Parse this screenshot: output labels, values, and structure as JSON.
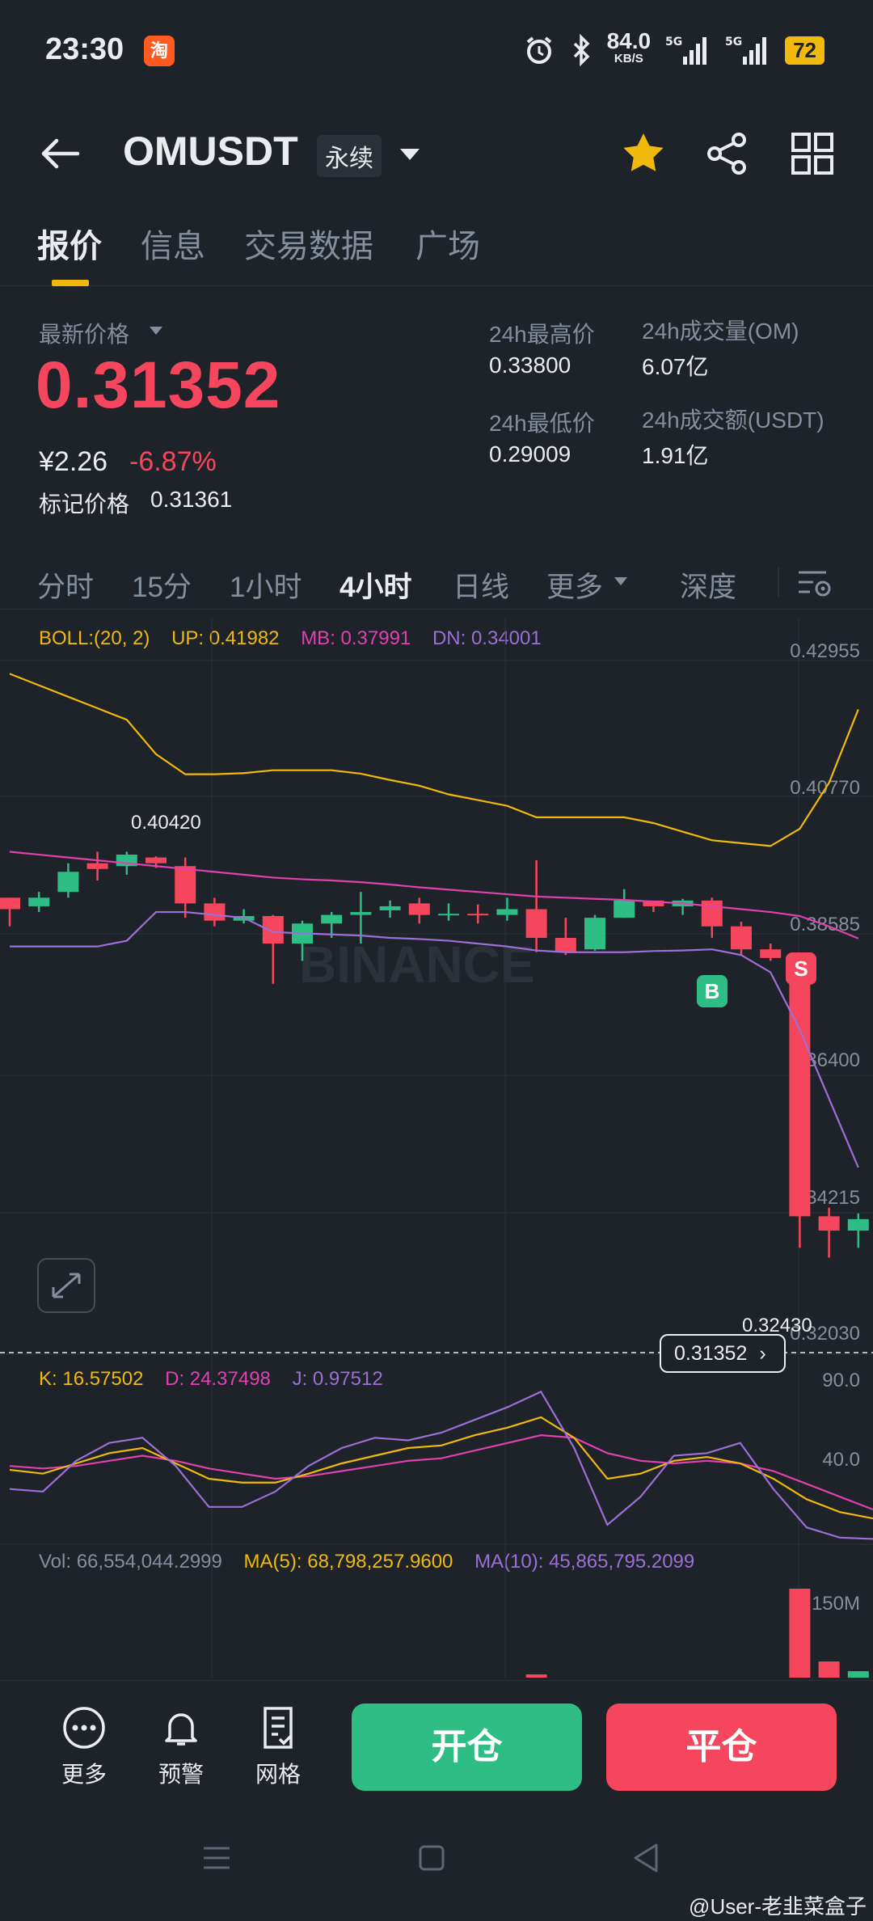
{
  "status_bar": {
    "time": "23:30",
    "app_icon": "淘",
    "net_speed": "84.0",
    "net_unit": "KB/S",
    "battery": "72",
    "icons": [
      "alarm-icon",
      "bluetooth-icon",
      "signal-5g-icon",
      "signal-5g-icon"
    ]
  },
  "header": {
    "symbol": "OMUSDT",
    "contract_type": "永续",
    "icons": [
      "back-arrow-icon",
      "chevron-down-icon",
      "star-icon",
      "share-icon",
      "grid-icon"
    ]
  },
  "tabs": [
    {
      "label": "报价",
      "active": true
    },
    {
      "label": "信息",
      "active": false
    },
    {
      "label": "交易数据",
      "active": false
    },
    {
      "label": "广场",
      "active": false
    }
  ],
  "price": {
    "label": "最新价格",
    "last": "0.31352",
    "cny": "¥2.26",
    "change": "-6.87%",
    "mark_label": "标记价格",
    "mark_value": "0.31361"
  },
  "stats": {
    "high_label": "24h最高价",
    "high": "0.33800",
    "low_label": "24h最低价",
    "low": "0.29009",
    "vol_label": "24h成交量(OM)",
    "vol": "6.07亿",
    "amount_label": "24h成交额(USDT)",
    "amount": "1.91亿"
  },
  "intervals": [
    {
      "label": "分时",
      "active": false
    },
    {
      "label": "15分",
      "active": false
    },
    {
      "label": "1小时",
      "active": false
    },
    {
      "label": "4小时",
      "active": true
    },
    {
      "label": "日线",
      "active": false
    },
    {
      "label": "更多",
      "active": false
    },
    {
      "label": "深度",
      "active": false
    }
  ],
  "boll_legend": {
    "boll": "BOLL:(20, 2)",
    "up": "UP: 0.41982",
    "mb": "MB: 0.37991",
    "dn": "DN: 0.34001"
  },
  "kdj_legend": {
    "k": "K: 16.57502",
    "d": "D: 24.37498",
    "j": "J: 0.97512"
  },
  "vol_legend": {
    "vol": "Vol: 66,554,044.2999",
    "ma5": "MA(5): 68,798,257.9600",
    "ma10": "MA(10): 45,865,795.2099"
  },
  "chart_labels": {
    "high_marker": "0.40420",
    "low_marker": "0.32430",
    "current_price": "0.31352",
    "buy_marker": "B",
    "sell_marker": "S",
    "price_axis": [
      "0.42955",
      "0.40770",
      "0.38585",
      "0.36400",
      "0.34215",
      "0.32030"
    ],
    "kdj_axis": [
      "90.0",
      "40.0"
    ],
    "vol_axis": "150M",
    "watermark": "BINANCE"
  },
  "colors": {
    "up": "#2ebd85",
    "down": "#f6465d",
    "boll_up": "#f0b90b",
    "boll_mb": "#e040b0",
    "boll_dn": "#9b6fd6",
    "accent": "#f0b90b"
  },
  "chart_data": {
    "type": "candlestick",
    "interval": "4小时",
    "ylim": [
      0.31,
      0.43
    ],
    "candles": [
      {
        "o": 0.387,
        "h": 0.387,
        "l": 0.382,
        "c": 0.385
      },
      {
        "o": 0.3855,
        "h": 0.388,
        "l": 0.3845,
        "c": 0.387
      },
      {
        "o": 0.388,
        "h": 0.393,
        "l": 0.387,
        "c": 0.3915
      },
      {
        "o": 0.393,
        "h": 0.395,
        "l": 0.39,
        "c": 0.392
      },
      {
        "o": 0.3925,
        "h": 0.395,
        "l": 0.391,
        "c": 0.3945
      },
      {
        "o": 0.394,
        "h": 0.3942,
        "l": 0.3922,
        "c": 0.393
      },
      {
        "o": 0.3925,
        "h": 0.394,
        "l": 0.3835,
        "c": 0.386
      },
      {
        "o": 0.386,
        "h": 0.387,
        "l": 0.382,
        "c": 0.383
      },
      {
        "o": 0.383,
        "h": 0.385,
        "l": 0.3825,
        "c": 0.3838
      },
      {
        "o": 0.3838,
        "h": 0.384,
        "l": 0.372,
        "c": 0.379
      },
      {
        "o": 0.379,
        "h": 0.383,
        "l": 0.376,
        "c": 0.3825
      },
      {
        "o": 0.3825,
        "h": 0.3845,
        "l": 0.38,
        "c": 0.384
      },
      {
        "o": 0.384,
        "h": 0.388,
        "l": 0.379,
        "c": 0.3845
      },
      {
        "o": 0.3848,
        "h": 0.3865,
        "l": 0.3835,
        "c": 0.3855
      },
      {
        "o": 0.386,
        "h": 0.387,
        "l": 0.3825,
        "c": 0.384
      },
      {
        "o": 0.384,
        "h": 0.386,
        "l": 0.383,
        "c": 0.3842
      },
      {
        "o": 0.3842,
        "h": 0.3858,
        "l": 0.3825,
        "c": 0.384
      },
      {
        "o": 0.384,
        "h": 0.387,
        "l": 0.383,
        "c": 0.385
      },
      {
        "o": 0.385,
        "h": 0.3935,
        "l": 0.3775,
        "c": 0.38
      },
      {
        "o": 0.38,
        "h": 0.3835,
        "l": 0.377,
        "c": 0.3775
      },
      {
        "o": 0.378,
        "h": 0.384,
        "l": 0.3778,
        "c": 0.3835
      },
      {
        "o": 0.3835,
        "h": 0.3885,
        "l": 0.3835,
        "c": 0.3865
      },
      {
        "o": 0.3865,
        "h": 0.3865,
        "l": 0.3845,
        "c": 0.3855
      },
      {
        "o": 0.3855,
        "h": 0.3868,
        "l": 0.384,
        "c": 0.3865
      },
      {
        "o": 0.3865,
        "h": 0.387,
        "l": 0.38,
        "c": 0.382
      },
      {
        "o": 0.382,
        "h": 0.3828,
        "l": 0.377,
        "c": 0.378
      },
      {
        "o": 0.378,
        "h": 0.379,
        "l": 0.376,
        "c": 0.3765
      },
      {
        "o": 0.3765,
        "h": 0.377,
        "l": 0.326,
        "c": 0.3315
      },
      {
        "o": 0.3315,
        "h": 0.333,
        "l": 0.3243,
        "c": 0.329
      },
      {
        "o": 0.329,
        "h": 0.332,
        "l": 0.326,
        "c": 0.331
      }
    ],
    "boll_up": [
      0.426,
      0.424,
      0.422,
      0.42,
      0.418,
      0.412,
      0.4085,
      0.4085,
      0.4087,
      0.4092,
      0.4092,
      0.4092,
      0.4086,
      0.4075,
      0.4065,
      0.405,
      0.404,
      0.403,
      0.401,
      0.401,
      0.401,
      0.401,
      0.4,
      0.3985,
      0.397,
      0.3965,
      0.396,
      0.399,
      0.407,
      0.4198
    ],
    "boll_mb": [
      0.395,
      0.3945,
      0.394,
      0.3935,
      0.393,
      0.3925,
      0.392,
      0.3915,
      0.391,
      0.3905,
      0.3902,
      0.39,
      0.3897,
      0.3893,
      0.3888,
      0.3884,
      0.388,
      0.3876,
      0.3872,
      0.387,
      0.3868,
      0.3866,
      0.3863,
      0.386,
      0.3855,
      0.385,
      0.3845,
      0.3838,
      0.382,
      0.3799
    ],
    "boll_dn": [
      0.3785,
      0.3785,
      0.3785,
      0.3785,
      0.3795,
      0.3845,
      0.3845,
      0.384,
      0.3835,
      0.381,
      0.3808,
      0.3806,
      0.3804,
      0.38,
      0.3798,
      0.3795,
      0.379,
      0.3785,
      0.3778,
      0.3775,
      0.3775,
      0.3775,
      0.3777,
      0.3778,
      0.378,
      0.377,
      0.374,
      0.364,
      0.352,
      0.34
    ],
    "kdj_k": [
      55,
      52,
      60,
      68,
      72,
      60,
      48,
      45,
      45,
      52,
      60,
      66,
      72,
      74,
      82,
      88,
      96,
      80,
      48,
      52,
      62,
      65,
      60,
      48,
      32,
      22,
      17
    ],
    "kdj_d": [
      58,
      56,
      58,
      62,
      66,
      62,
      56,
      52,
      48,
      50,
      54,
      58,
      62,
      64,
      70,
      76,
      82,
      80,
      68,
      62,
      60,
      62,
      60,
      54,
      44,
      34,
      24
    ],
    "kdj_j": [
      40,
      38,
      62,
      76,
      80,
      58,
      26,
      26,
      38,
      58,
      72,
      80,
      78,
      84,
      94,
      104,
      116,
      72,
      12,
      34,
      66,
      68,
      76,
      40,
      10,
      2,
      1
    ],
    "volume_max_visible": 150000000
  }
}
